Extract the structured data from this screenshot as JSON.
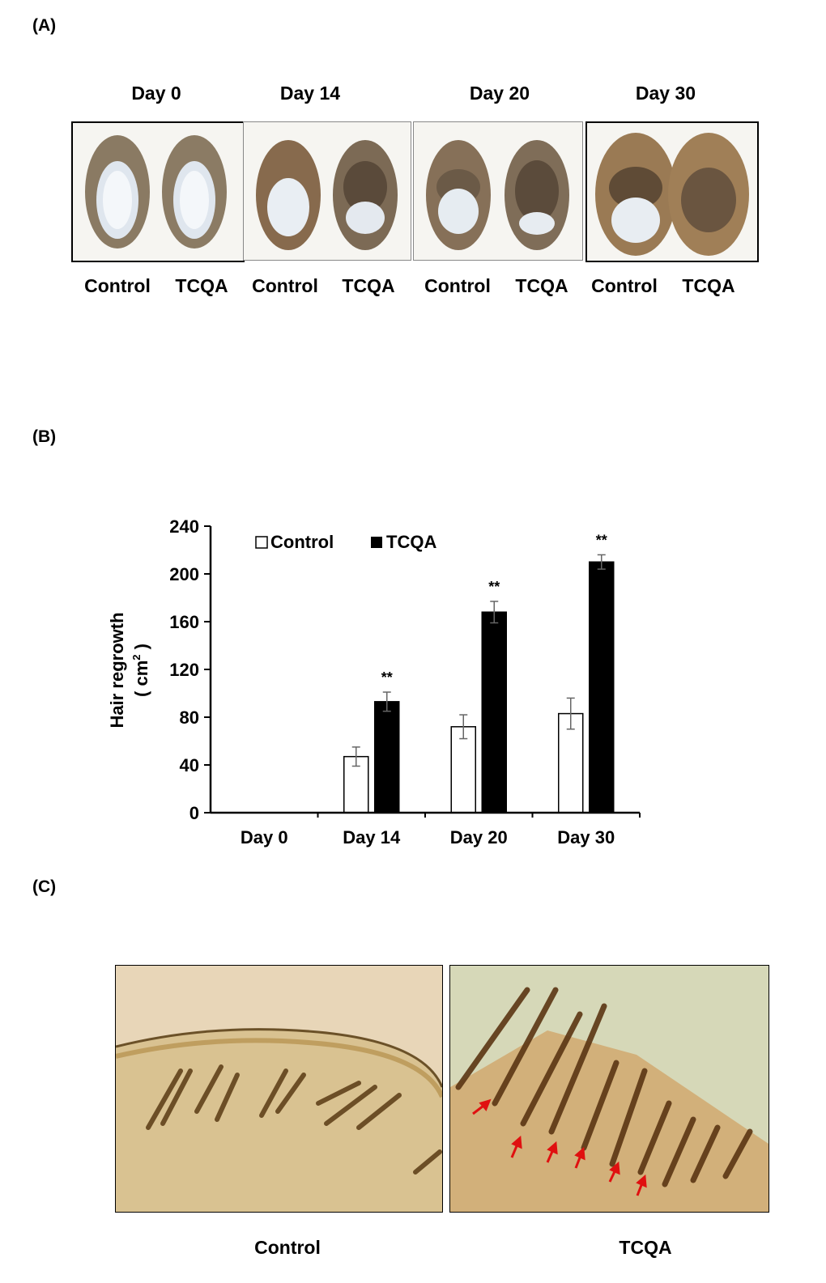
{
  "panels": {
    "a": "(A)",
    "b": "(B)",
    "c": "(C)"
  },
  "panel_a": {
    "days": [
      "Day 0",
      "Day 14",
      "Day 20",
      "Day 30"
    ],
    "groups": [
      "Control",
      "TCQA",
      "Control",
      "TCQA",
      "Control",
      "TCQA",
      "Control",
      "TCQA"
    ]
  },
  "chart_data": {
    "type": "bar",
    "categories": [
      "Day 0",
      "Day 14",
      "Day 20",
      "Day 30"
    ],
    "series": [
      {
        "name": "Control",
        "values": [
          0,
          47,
          72,
          83
        ],
        "errors": [
          0,
          8,
          10,
          13
        ],
        "color": "#ffffff"
      },
      {
        "name": "TCQA",
        "values": [
          0,
          93,
          168,
          210
        ],
        "errors": [
          0,
          8,
          9,
          6
        ],
        "color": "#000000"
      }
    ],
    "annotations": [
      "",
      "**",
      "**",
      "**"
    ],
    "ylabel_line1": "Hair regrowth",
    "ylabel_line2": "( cm",
    "ylabel_sup": "2",
    "ylabel_close": " )",
    "ylim": [
      0,
      240
    ],
    "yticks": [
      0,
      40,
      80,
      120,
      160,
      200,
      240
    ],
    "legend_position": "top-left",
    "grid": false
  },
  "panel_c": {
    "labels": [
      "Control",
      "TCQA"
    ]
  }
}
